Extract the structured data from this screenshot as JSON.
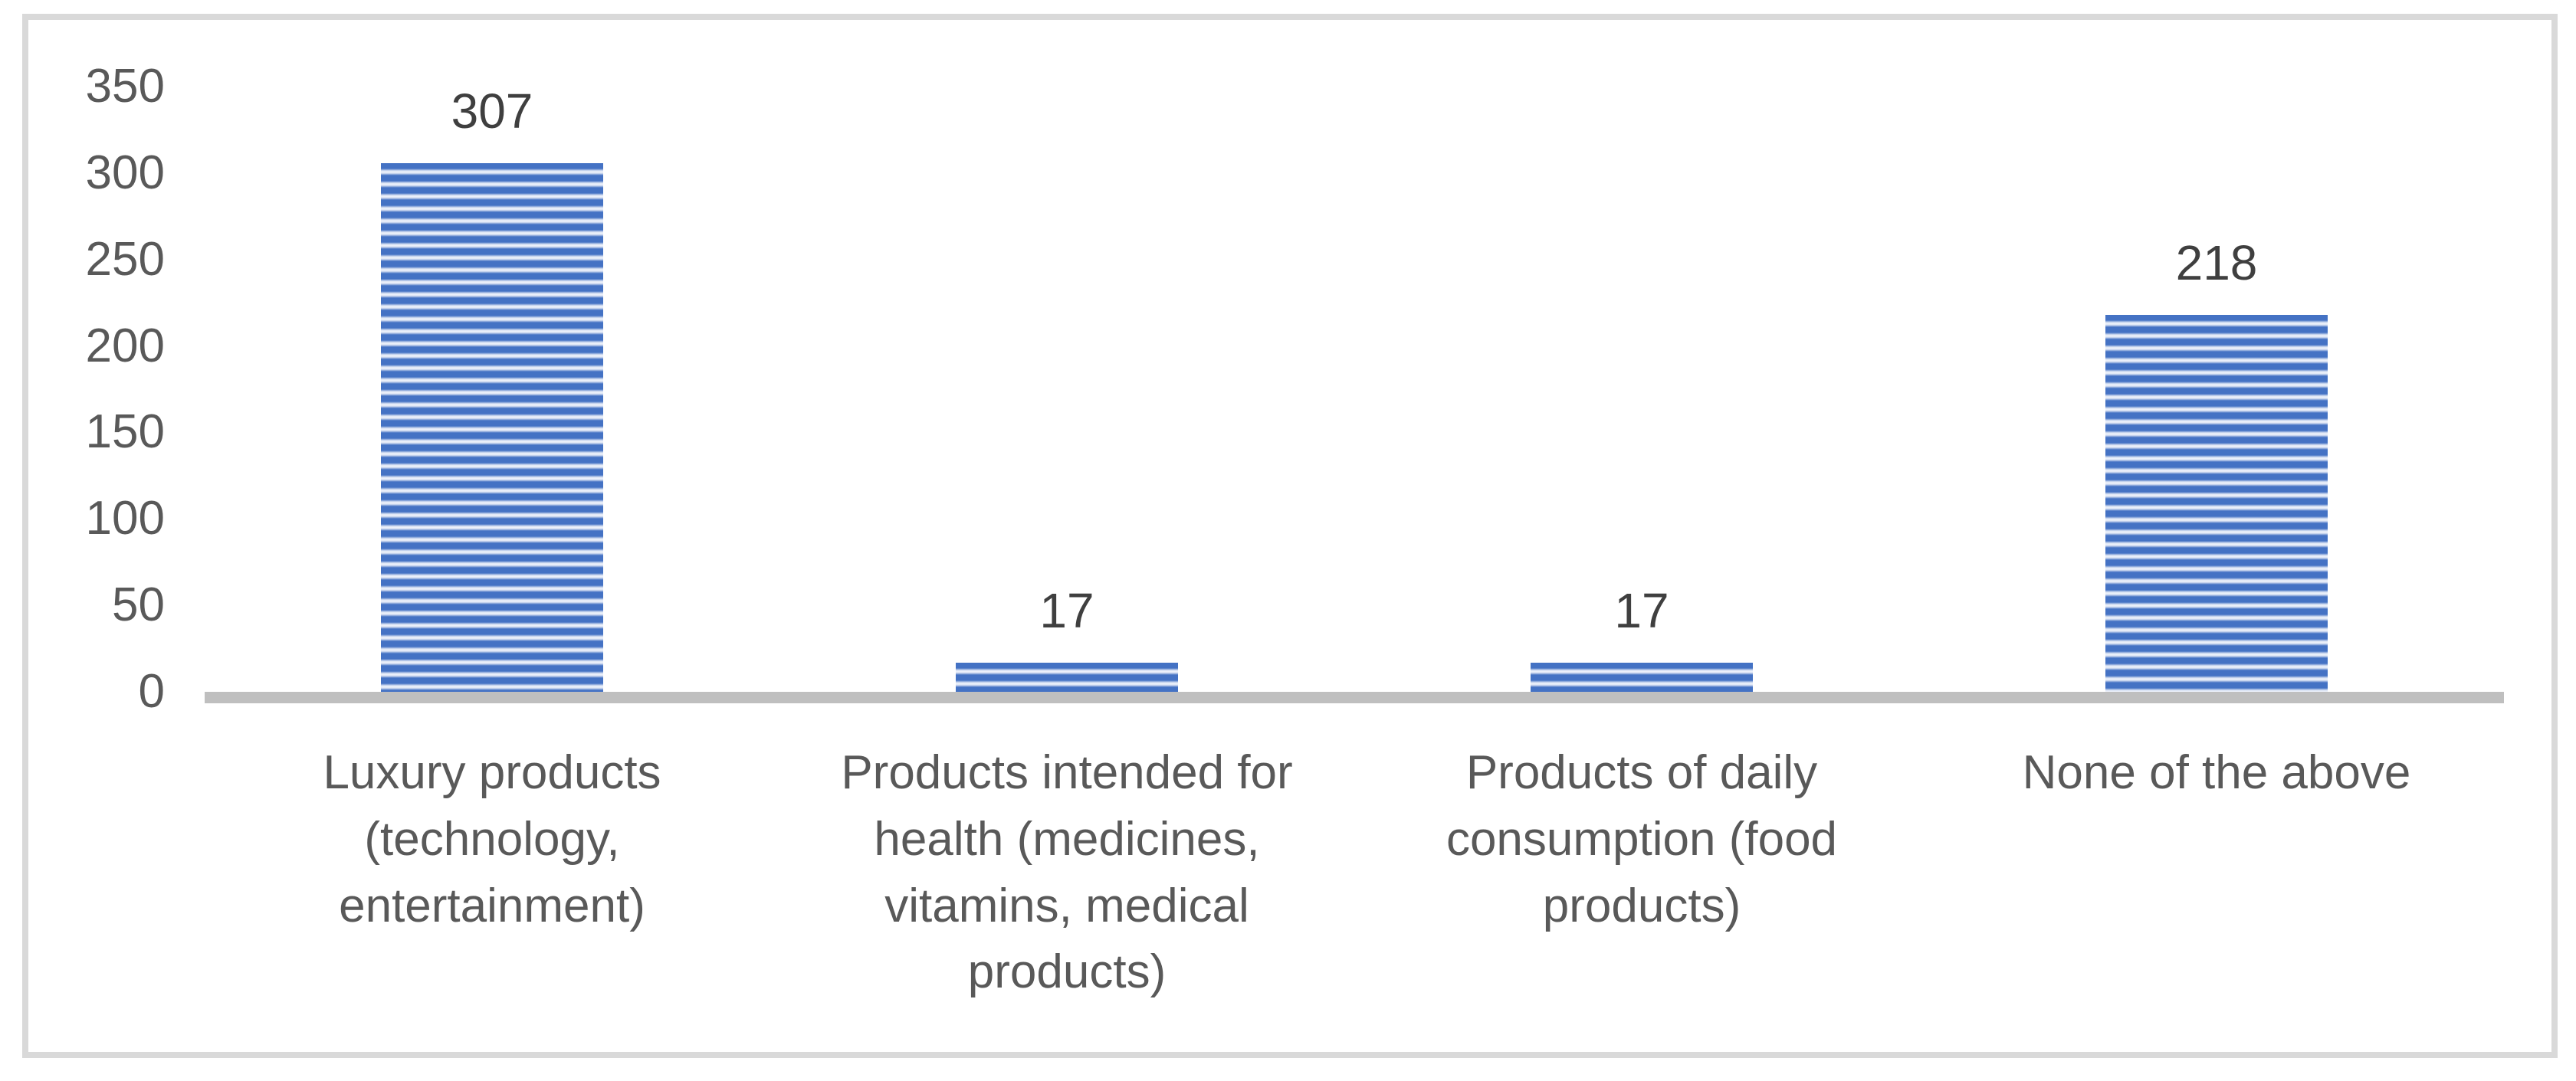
{
  "chart_data": {
    "type": "bar",
    "categories": [
      "Luxury products (technology, entertainment)",
      "Products intended for health (medicines, vitamins, medical products)",
      "Products of daily consumption (food products)",
      "None of the above"
    ],
    "values": [
      307,
      17,
      17,
      218
    ],
    "data_labels": [
      "307",
      "17",
      "17",
      "218"
    ],
    "title": "",
    "xlabel": "",
    "ylabel": "",
    "ylim": [
      0,
      350
    ],
    "y_ticks": [
      0,
      50,
      100,
      150,
      200,
      250,
      300,
      350
    ],
    "grid": false,
    "legend": false,
    "bar_fill_style": "horizontal-stripes",
    "colors": {
      "bar_stripe_blue": "#4472c4",
      "bar_stripe_light": "#e8eef9",
      "axis_line": "#bfbfbf",
      "tick_text": "#595959",
      "category_text": "#595959",
      "data_label_text": "#3f3f3f",
      "frame_border": "#d9d9d9",
      "background": "#ffffff"
    }
  }
}
